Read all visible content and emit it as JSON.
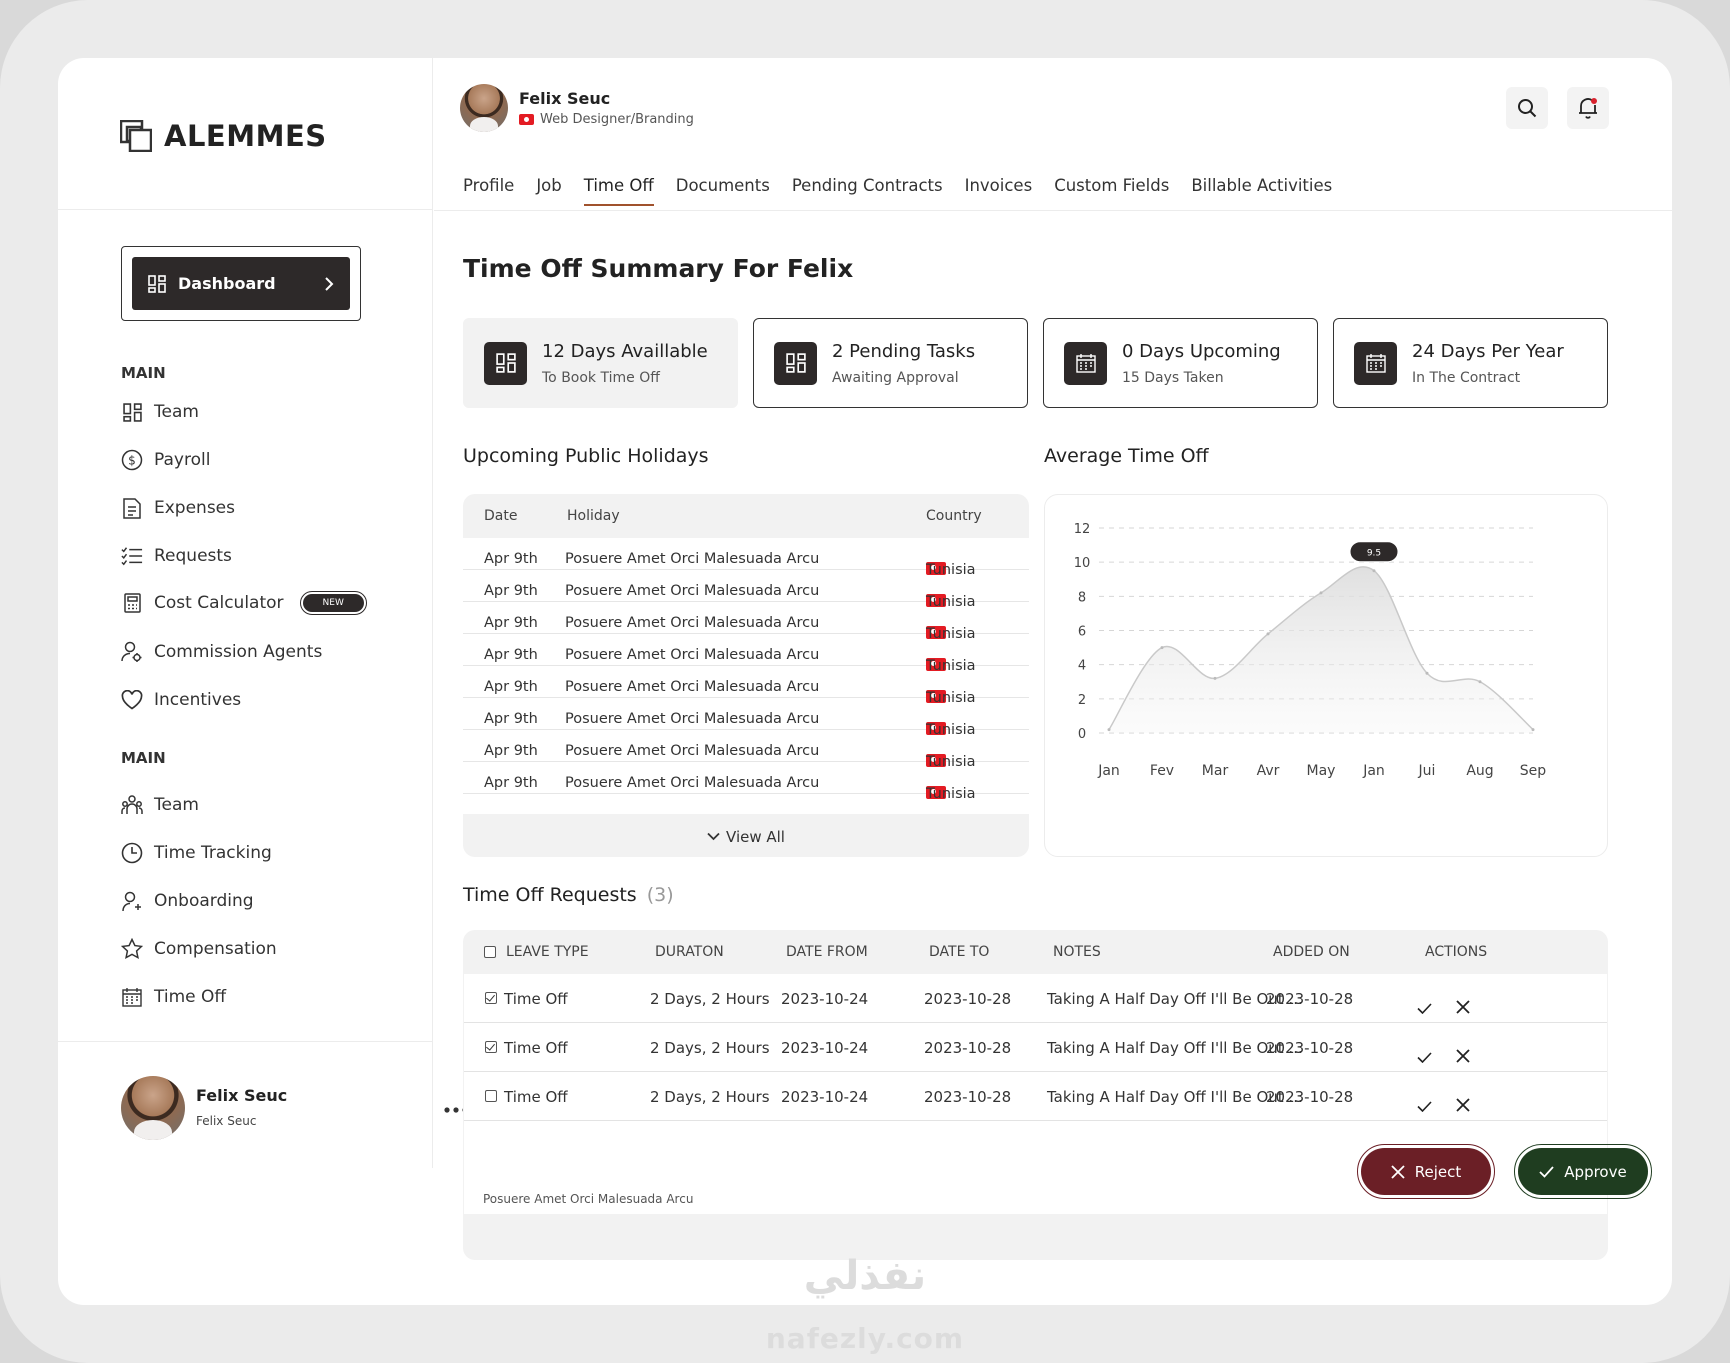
{
  "brand": {
    "name": "ALEMMES"
  },
  "sidebar": {
    "dashboard_label": "Dashboard",
    "section1": "MAIN",
    "section2": "MAIN",
    "new_badge": "NEW",
    "items1": [
      {
        "label": "Team",
        "icon": "grid-icon"
      },
      {
        "label": "Payroll",
        "icon": "dollar-circle-icon"
      },
      {
        "label": "Expenses",
        "icon": "document-icon"
      },
      {
        "label": "Requests",
        "icon": "checklist-icon"
      },
      {
        "label": "Cost Calculator",
        "icon": "calculator-icon"
      },
      {
        "label": "Commission Agents",
        "icon": "user-gear-icon"
      },
      {
        "label": "Incentives",
        "icon": "heart-icon"
      }
    ],
    "items2": [
      {
        "label": "Team",
        "icon": "people-icon"
      },
      {
        "label": "Time Tracking",
        "icon": "clock-icon"
      },
      {
        "label": "Onboarding",
        "icon": "user-plus-icon"
      },
      {
        "label": "Compensation",
        "icon": "star-icon"
      },
      {
        "label": "Time Off",
        "icon": "calendar-icon"
      }
    ],
    "user": {
      "name": "Felix Seuc",
      "sub": "Felix Seuc"
    }
  },
  "profile": {
    "name": "Felix Seuc",
    "role": "Web Designer/Branding"
  },
  "tabs": [
    "Profile",
    "Job",
    "Time Off",
    "Documents",
    "Pending Contracts",
    "Invoices",
    "Custom Fields",
    "Billable Activities"
  ],
  "active_tab": "Time Off",
  "page_title": "Time Off Summary For Felix",
  "cards": [
    {
      "title": "12 Days Availlable",
      "sub": "To Book Time Off",
      "icon": "grid-icon"
    },
    {
      "title": "2 Pending Tasks",
      "sub": "Awaiting Approval",
      "icon": "grid-icon"
    },
    {
      "title": "0 Days Upcoming",
      "sub": "15 Days Taken",
      "icon": "calendar-icon"
    },
    {
      "title": "24 Days Per Year",
      "sub": "In The Contract",
      "icon": "calendar-icon"
    }
  ],
  "holidays": {
    "title": "Upcoming Public Holidays",
    "columns": [
      "Date",
      "Holiday",
      "Country"
    ],
    "rows": [
      {
        "date": "Apr 9th",
        "holiday": "Posuere Amet Orci Malesuada Arcu",
        "country": "Tunisia"
      },
      {
        "date": "Apr 9th",
        "holiday": "Posuere Amet Orci Malesuada Arcu",
        "country": "Tunisia"
      },
      {
        "date": "Apr 9th",
        "holiday": "Posuere Amet Orci Malesuada Arcu",
        "country": "Tunisia"
      },
      {
        "date": "Apr 9th",
        "holiday": "Posuere Amet Orci Malesuada Arcu",
        "country": "Tunisia"
      },
      {
        "date": "Apr 9th",
        "holiday": "Posuere Amet Orci Malesuada Arcu",
        "country": "Tunisia"
      },
      {
        "date": "Apr 9th",
        "holiday": "Posuere Amet Orci Malesuada Arcu",
        "country": "Tunisia"
      },
      {
        "date": "Apr 9th",
        "holiday": "Posuere Amet Orci Malesuada Arcu",
        "country": "Tunisia"
      },
      {
        "date": "Apr 9th",
        "holiday": "Posuere Amet Orci Malesuada Arcu",
        "country": "Tunisia"
      }
    ],
    "view_all": "View All"
  },
  "chart_title": "Average Time Off",
  "chart_data": {
    "type": "area",
    "categories": [
      "Jan",
      "Fev",
      "Mar",
      "Avr",
      "May",
      "Jan",
      "Jui",
      "Aug",
      "Sep"
    ],
    "values": [
      0.2,
      5.0,
      3.2,
      5.8,
      8.2,
      9.5,
      3.5,
      3.0,
      0.2
    ],
    "yticks": [
      0,
      2,
      4,
      6,
      8,
      10,
      12
    ],
    "ylim": [
      0,
      12
    ],
    "highlight_label": "9.5",
    "grid": true
  },
  "requests": {
    "title": "Time Off Requests",
    "count": "(3)",
    "columns": [
      "LEAVE TYPE",
      "DURATON",
      "DATE FROM",
      "DATE TO",
      "NOTES",
      "ADDED ON",
      "ACTIONS"
    ],
    "rows": [
      {
        "type": "Time Off",
        "duration": "2 Days, 2 Hours",
        "from": "2023-10-24",
        "to": "2023-10-28",
        "notes": "Taking A Half Day Off I'll Be Out ...",
        "added": "2023-10-28",
        "checked": true
      },
      {
        "type": "Time Off",
        "duration": "2 Days, 2 Hours",
        "from": "2023-10-24",
        "to": "2023-10-28",
        "notes": "Taking A Half Day Off I'll Be Out ...",
        "added": "2023-10-28",
        "checked": true
      },
      {
        "type": "Time Off",
        "duration": "2 Days, 2 Hours",
        "from": "2023-10-24",
        "to": "2023-10-28",
        "notes": "Taking A Half Day Off I'll Be Out ...",
        "added": "2023-10-28",
        "checked": false
      }
    ],
    "reject": "Reject",
    "approve": "Approve",
    "footer": "Posuere Amet Orci Malesuada Arcu"
  },
  "colors": {
    "dark": "#2d2929",
    "reject": "#6b1f26",
    "approve": "#1f3d20",
    "accent": "#a0522d"
  },
  "watermark": {
    "arabic": "نفذلي",
    "latin": "nafezly.com"
  }
}
